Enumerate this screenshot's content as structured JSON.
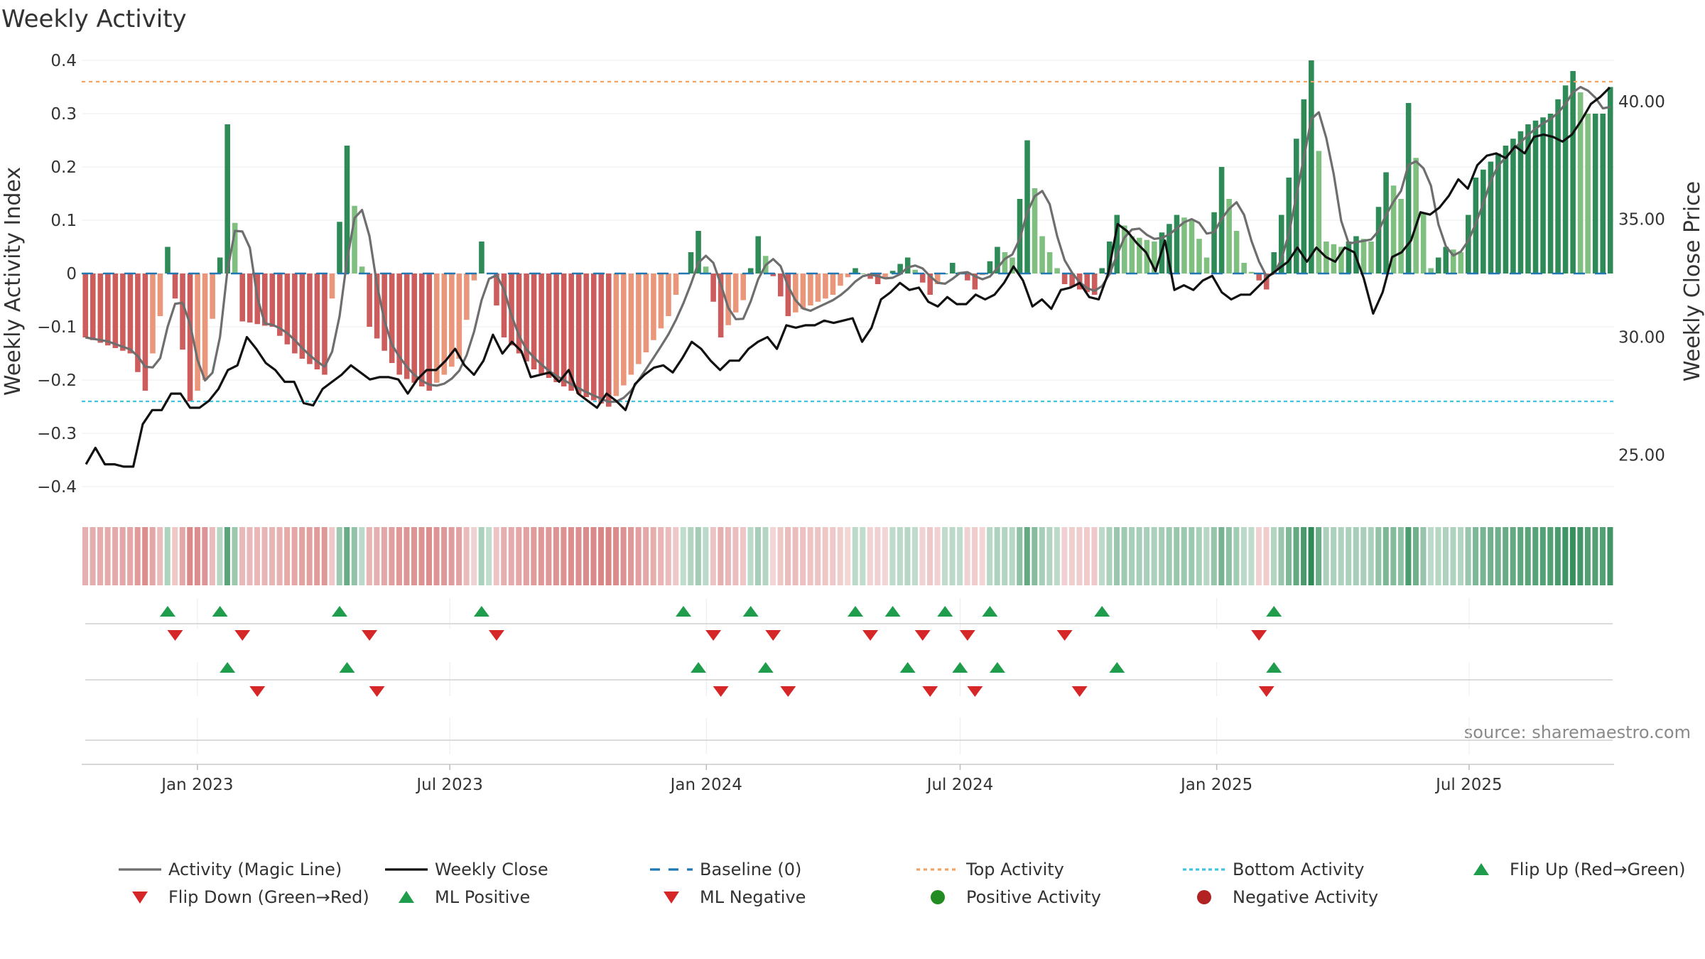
{
  "chart_data": {
    "type": "bar",
    "title": "Weekly Activity",
    "ylabel": "Weekly Activity Index",
    "y2label": "Weekly Close Price",
    "source": "source: sharemaestro.com",
    "ylim": [
      -0.42,
      0.42
    ],
    "y2lim": [
      23.2,
      42.2
    ],
    "yticks": [
      0.4,
      0.3,
      0.2,
      0.1,
      0,
      -0.1,
      -0.2,
      -0.3,
      -0.4
    ],
    "yticklabels": [
      "0.4",
      "0.3",
      "0.2",
      "0.1",
      "0",
      "−0.1",
      "−0.2",
      "−0.3",
      "−0.4"
    ],
    "y2ticks": [
      40,
      35,
      30,
      25
    ],
    "y2ticklabels": [
      "40.00",
      "35.00",
      "30.00",
      "25.00"
    ],
    "date_start": "2022-10-10",
    "date_end": "2025-10-13",
    "xticks": [
      {
        "date": "2023-01-01",
        "label": "Jan 2023"
      },
      {
        "date": "2023-07-01",
        "label": "Jul 2023"
      },
      {
        "date": "2024-01-01",
        "label": "Jan 2024"
      },
      {
        "date": "2024-07-01",
        "label": "Jul 2024"
      },
      {
        "date": "2025-01-01",
        "label": "Jan 2025"
      },
      {
        "date": "2025-07-01",
        "label": "Jul 2025"
      }
    ],
    "top_activity": 0.36,
    "bottom_activity": -0.24,
    "activity_keys": [
      [
        0,
        -0.12
      ],
      [
        6,
        -0.15
      ],
      [
        8,
        -0.22
      ],
      [
        10,
        -0.08
      ],
      [
        11,
        0.05
      ],
      [
        14,
        -0.24
      ],
      [
        16,
        -0.2
      ],
      [
        18,
        0.03
      ],
      [
        19,
        0.28
      ],
      [
        21,
        -0.09
      ],
      [
        25,
        -0.1
      ],
      [
        28,
        -0.15
      ],
      [
        32,
        -0.19
      ],
      [
        35,
        0.24
      ],
      [
        38,
        -0.1
      ],
      [
        42,
        -0.19
      ],
      [
        46,
        -0.22
      ],
      [
        50,
        -0.16
      ],
      [
        53,
        0.06
      ],
      [
        56,
        -0.12
      ],
      [
        60,
        -0.18
      ],
      [
        65,
        -0.22
      ],
      [
        70,
        -0.25
      ],
      [
        74,
        -0.17
      ],
      [
        78,
        -0.08
      ],
      [
        82,
        0.08
      ],
      [
        85,
        -0.12
      ],
      [
        88,
        -0.05
      ],
      [
        90,
        0.07
      ],
      [
        94,
        -0.08
      ],
      [
        100,
        -0.04
      ],
      [
        103,
        0.01
      ],
      [
        106,
        -0.02
      ],
      [
        110,
        0.03
      ],
      [
        113,
        -0.04
      ],
      [
        116,
        0.02
      ],
      [
        119,
        -0.03
      ],
      [
        122,
        0.05
      ],
      [
        124,
        0.03
      ],
      [
        126,
        0.25
      ],
      [
        128,
        0.07
      ],
      [
        131,
        -0.02
      ],
      [
        135,
        -0.04
      ],
      [
        138,
        0.11
      ],
      [
        140,
        0.07
      ],
      [
        143,
        0.06
      ],
      [
        146,
        0.11
      ],
      [
        148,
        0.1
      ],
      [
        150,
        0.03
      ],
      [
        152,
        0.2
      ],
      [
        155,
        0.02
      ],
      [
        158,
        -0.03
      ],
      [
        161,
        0.18
      ],
      [
        164,
        0.4
      ],
      [
        166,
        0.06
      ],
      [
        168,
        0.05
      ],
      [
        170,
        0.07
      ],
      [
        172,
        0.06
      ],
      [
        174,
        0.19
      ],
      [
        176,
        0.14
      ],
      [
        177,
        0.32
      ],
      [
        180,
        0.01
      ],
      [
        182,
        0.05
      ],
      [
        184,
        0.04
      ],
      [
        186,
        0.18
      ],
      [
        190,
        0.24
      ],
      [
        193,
        0.28
      ],
      [
        196,
        0.3
      ],
      [
        199,
        0.38
      ],
      [
        201,
        0.3
      ],
      [
        203,
        0.3
      ],
      [
        204,
        0.35
      ]
    ],
    "close_keys": [
      [
        0,
        24.6
      ],
      [
        1,
        25.3
      ],
      [
        2,
        24.6
      ],
      [
        3,
        24.6
      ],
      [
        4,
        24.5
      ],
      [
        5,
        24.5
      ],
      [
        6,
        26.3
      ],
      [
        7,
        26.9
      ],
      [
        8,
        26.9
      ],
      [
        9,
        27.6
      ],
      [
        10,
        27.6
      ],
      [
        11,
        27.0
      ],
      [
        12,
        27.0
      ],
      [
        13,
        27.3
      ],
      [
        14,
        27.8
      ],
      [
        15,
        28.6
      ],
      [
        16,
        28.8
      ],
      [
        17,
        30.0
      ],
      [
        18,
        29.5
      ],
      [
        19,
        28.9
      ],
      [
        20,
        28.6
      ],
      [
        21,
        28.1
      ],
      [
        22,
        28.1
      ],
      [
        23,
        27.2
      ],
      [
        24,
        27.1
      ],
      [
        25,
        27.8
      ],
      [
        26,
        28.1
      ],
      [
        27,
        28.4
      ],
      [
        28,
        28.8
      ],
      [
        29,
        28.5
      ],
      [
        30,
        28.2
      ],
      [
        31,
        28.3
      ],
      [
        32,
        28.3
      ],
      [
        33,
        28.2
      ],
      [
        34,
        27.6
      ],
      [
        35,
        28.2
      ],
      [
        36,
        28.6
      ],
      [
        37,
        28.6
      ],
      [
        38,
        29.0
      ],
      [
        39,
        29.5
      ],
      [
        40,
        28.8
      ],
      [
        41,
        28.4
      ],
      [
        42,
        29.0
      ],
      [
        43,
        30.1
      ],
      [
        44,
        29.3
      ],
      [
        45,
        29.8
      ],
      [
        46,
        29.4
      ],
      [
        47,
        28.3
      ],
      [
        48,
        28.4
      ],
      [
        49,
        28.5
      ],
      [
        50,
        28.1
      ],
      [
        51,
        28.6
      ],
      [
        52,
        27.6
      ],
      [
        53,
        27.3
      ],
      [
        54,
        27.0
      ],
      [
        55,
        27.6
      ],
      [
        56,
        27.3
      ],
      [
        57,
        26.9
      ],
      [
        58,
        28.0
      ],
      [
        59,
        28.4
      ],
      [
        60,
        28.7
      ],
      [
        61,
        28.8
      ],
      [
        62,
        28.5
      ],
      [
        63,
        29.1
      ],
      [
        64,
        29.8
      ],
      [
        65,
        29.5
      ],
      [
        66,
        29.0
      ],
      [
        67,
        28.6
      ],
      [
        68,
        29.0
      ],
      [
        69,
        29.0
      ],
      [
        70,
        29.5
      ],
      [
        71,
        29.8
      ],
      [
        72,
        30.0
      ],
      [
        73,
        29.5
      ],
      [
        74,
        30.5
      ],
      [
        75,
        30.4
      ],
      [
        76,
        30.5
      ],
      [
        77,
        30.5
      ],
      [
        78,
        30.7
      ],
      [
        79,
        30.6
      ],
      [
        80,
        30.7
      ],
      [
        81,
        30.8
      ],
      [
        82,
        29.8
      ],
      [
        83,
        30.4
      ],
      [
        84,
        31.6
      ],
      [
        85,
        31.9
      ],
      [
        86,
        32.3
      ],
      [
        87,
        32.0
      ],
      [
        88,
        32.1
      ],
      [
        89,
        31.5
      ],
      [
        90,
        31.3
      ],
      [
        91,
        31.7
      ],
      [
        92,
        31.4
      ],
      [
        93,
        31.4
      ],
      [
        94,
        31.8
      ],
      [
        95,
        31.6
      ],
      [
        96,
        31.8
      ],
      [
        97,
        32.3
      ],
      [
        98,
        33.0
      ],
      [
        99,
        32.4
      ],
      [
        100,
        31.3
      ],
      [
        101,
        31.6
      ],
      [
        102,
        31.2
      ],
      [
        103,
        32.0
      ],
      [
        104,
        32.1
      ],
      [
        105,
        32.3
      ],
      [
        106,
        31.7
      ],
      [
        107,
        31.6
      ],
      [
        108,
        32.7
      ],
      [
        109,
        34.8
      ],
      [
        110,
        34.5
      ],
      [
        111,
        34.0
      ],
      [
        112,
        33.6
      ],
      [
        113,
        32.8
      ],
      [
        114,
        34.1
      ],
      [
        115,
        32.0
      ],
      [
        116,
        32.2
      ],
      [
        117,
        32.0
      ],
      [
        118,
        32.4
      ],
      [
        119,
        32.6
      ],
      [
        120,
        31.9
      ],
      [
        121,
        31.6
      ],
      [
        122,
        31.8
      ],
      [
        123,
        31.8
      ],
      [
        124,
        32.2
      ],
      [
        125,
        32.6
      ],
      [
        126,
        32.9
      ],
      [
        127,
        33.2
      ],
      [
        128,
        33.8
      ],
      [
        129,
        33.2
      ],
      [
        130,
        33.8
      ],
      [
        131,
        33.4
      ],
      [
        132,
        33.2
      ],
      [
        133,
        33.8
      ],
      [
        134,
        33.6
      ],
      [
        135,
        32.5
      ],
      [
        136,
        31.0
      ],
      [
        137,
        31.9
      ],
      [
        138,
        33.4
      ],
      [
        139,
        33.6
      ],
      [
        140,
        34.1
      ],
      [
        141,
        35.3
      ],
      [
        142,
        35.2
      ],
      [
        143,
        35.5
      ],
      [
        144,
        36.0
      ],
      [
        145,
        36.7
      ],
      [
        146,
        36.3
      ],
      [
        147,
        37.3
      ],
      [
        148,
        37.7
      ],
      [
        149,
        37.8
      ],
      [
        150,
        37.6
      ],
      [
        151,
        38.1
      ],
      [
        152,
        37.8
      ],
      [
        153,
        38.5
      ],
      [
        154,
        38.6
      ],
      [
        155,
        38.5
      ],
      [
        156,
        38.3
      ],
      [
        157,
        38.6
      ],
      [
        158,
        39.2
      ],
      [
        159,
        39.9
      ],
      [
        160,
        40.2
      ],
      [
        161,
        40.6
      ]
    ],
    "legend": [
      "Activity (Magic Line)",
      "Weekly Close",
      "Baseline (0)",
      "Top Activity",
      "Bottom Activity",
      "Flip Up (Red→Green)",
      "Flip Down (Green→Red)",
      "ML Positive",
      "ML Negative",
      "Positive Activity",
      "Negative Activity"
    ],
    "colors": {
      "positive_dark": "#2e8b57",
      "positive_light": "#7fbf7f",
      "negative_dark": "#cd5c5c",
      "negative_light": "#e9967a",
      "magic_line": "#6e6e6e",
      "close": "#111111",
      "baseline": "#1f77b4",
      "top": "#f4a460",
      "bottom": "#40c4e0",
      "flip_up": "#1f9d4c",
      "flip_down": "#d62728",
      "pos_dot": "#228b22",
      "neg_dot": "#b22222"
    }
  }
}
